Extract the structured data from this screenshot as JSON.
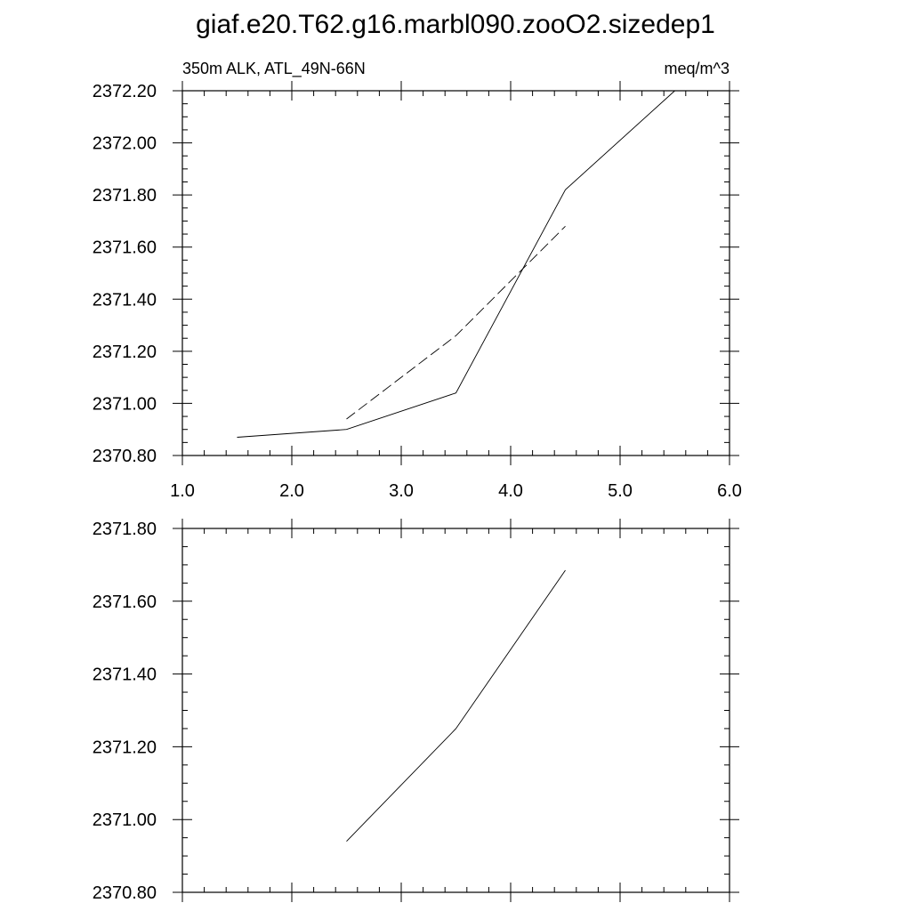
{
  "title": "giaf.e20.T62.g16.marbl090.zooO2.sizedep1",
  "chart_data": [
    {
      "type": "line",
      "left_label": "350m ALK, ATL_49N-66N",
      "right_label": "meq/m^3",
      "xlim": [
        1.0,
        6.0
      ],
      "ylim": [
        2370.8,
        2372.2
      ],
      "x_ticks": [
        "1.0",
        "2.0",
        "3.0",
        "4.0",
        "5.0",
        "6.0"
      ],
      "y_ticks": [
        "2370.80",
        "2371.00",
        "2371.20",
        "2371.40",
        "2371.60",
        "2371.80",
        "2372.00",
        "2372.20"
      ],
      "series": [
        {
          "style": "solid",
          "x": [
            1.5,
            2.5,
            3.5,
            4.5,
            5.5
          ],
          "y": [
            2370.87,
            2370.9,
            2371.04,
            2371.82,
            2372.2
          ]
        },
        {
          "style": "dashed",
          "x": [
            2.5,
            3.5,
            4.5
          ],
          "y": [
            2370.94,
            2371.26,
            2371.68
          ]
        }
      ]
    },
    {
      "type": "line",
      "xlim": [
        1.0,
        6.0
      ],
      "ylim": [
        2370.8,
        2371.8
      ],
      "y_ticks": [
        "2370.80",
        "2371.00",
        "2371.20",
        "2371.40",
        "2371.60",
        "2371.80"
      ],
      "series": [
        {
          "style": "solid",
          "x": [
            2.5,
            3.5,
            4.5
          ],
          "y": [
            2370.94,
            2371.25,
            2371.685
          ]
        }
      ]
    }
  ]
}
